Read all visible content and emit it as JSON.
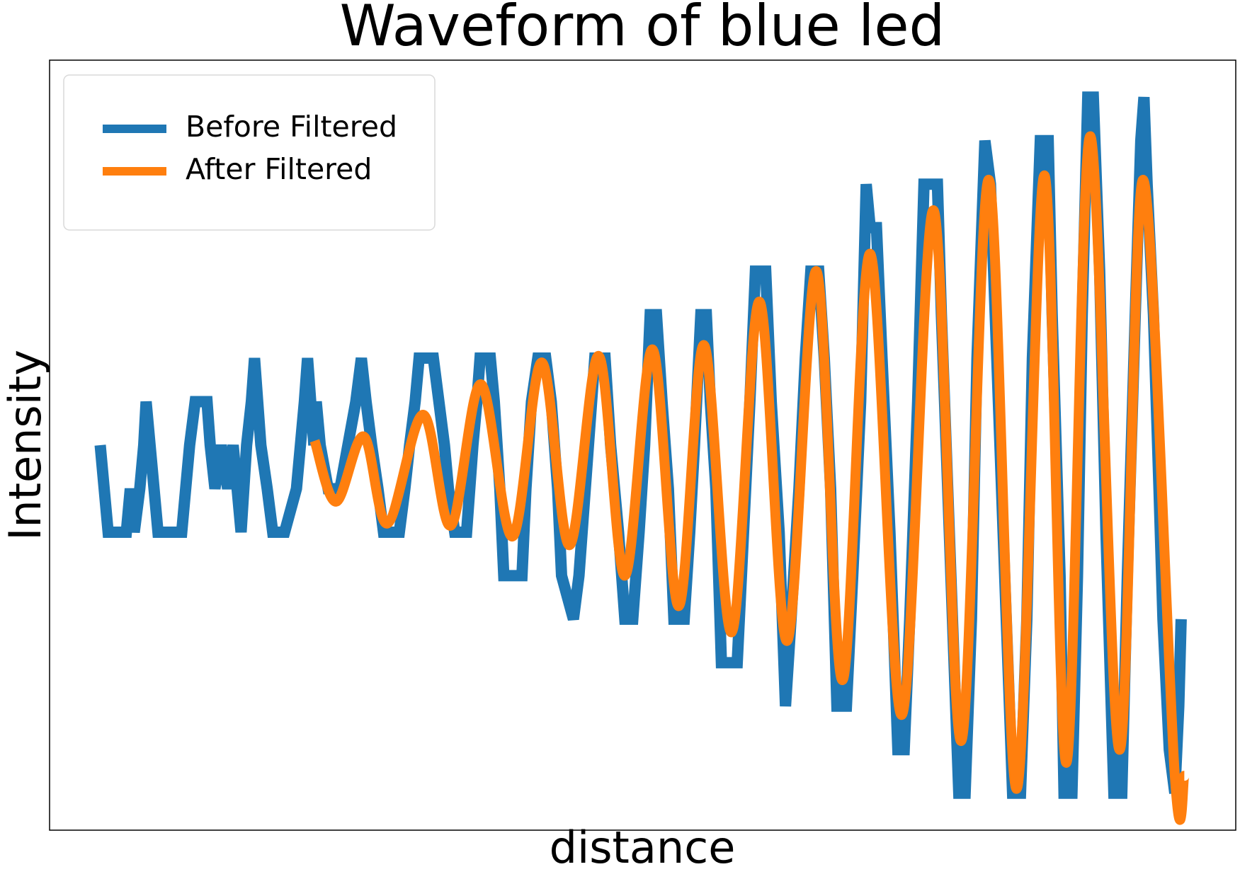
{
  "chart_data": {
    "type": "line",
    "title": "Waveform of blue led",
    "x_label": "distance",
    "y_label": "Intensity",
    "xlim": [
      63,
      1562
    ],
    "ylim": [
      -8.85,
      8.85
    ],
    "legend": "upper left",
    "series": [
      {
        "name": "Before Filtered",
        "color": "#1f77b4",
        "smooth": false,
        "x": [
          127,
          132,
          137,
          160,
          165,
          170,
          177,
          182,
          185,
          190,
          195,
          200,
          230,
          235,
          240,
          247,
          262,
          266,
          272,
          280,
          288,
          295,
          300,
          305,
          312,
          318,
          322,
          326,
          330,
          338,
          345,
          360,
          375,
          380,
          385,
          389,
          393,
          397,
          400,
          405,
          415,
          430,
          440,
          450,
          457,
          463,
          470,
          478,
          485,
          505,
          512,
          518,
          525,
          530,
          548,
          555,
          562,
          567,
          575,
          590,
          598,
          603,
          607,
          620,
          625,
          632,
          637,
          660,
          665,
          672,
          680,
          690,
          697,
          705,
          710,
          725,
          732,
          740,
          748,
          752,
          765,
          772,
          782,
          790,
          800,
          808,
          815,
          822,
          830,
          837,
          845,
          852,
          865,
          872,
          878,
          886,
          893,
          898,
          905,
          912,
          932,
          940,
          948,
          955,
          968,
          975,
          985,
          993,
          1000,
          1010,
          1018,
          1025,
          1035,
          1042,
          1050,
          1058,
          1070,
          1078,
          1088,
          1095,
          1100,
          1108,
          1115,
          1125,
          1135,
          1143,
          1150,
          1160,
          1168,
          1185,
          1190,
          1200,
          1212,
          1220,
          1228,
          1235,
          1245,
          1252,
          1258,
          1268,
          1280,
          1290,
          1298,
          1305,
          1315,
          1325,
          1330,
          1340,
          1345,
          1355,
          1362,
          1368,
          1375,
          1382,
          1390,
          1398,
          1408,
          1418,
          1425,
          1435,
          1442,
          1446,
          1450,
          1458,
          1465,
          1470,
          1478,
          1485,
          1490,
          1493
        ],
        "values": [
          0,
          -1,
          -2,
          -2,
          -1,
          -2,
          -1,
          0,
          1,
          0,
          -1,
          -2,
          -2,
          -1,
          0,
          1,
          1,
          0,
          -1,
          0,
          -1,
          0,
          -1,
          -2,
          0,
          1,
          2,
          1,
          0,
          -1,
          -2,
          -2,
          -1,
          0,
          1,
          2,
          1,
          0,
          1,
          0,
          -1,
          -1,
          0,
          1,
          2,
          1,
          0,
          -1,
          -2,
          -2,
          -1,
          0,
          1,
          2,
          2,
          1,
          0,
          -1,
          -2,
          -2,
          0,
          1,
          2,
          2,
          1,
          -1,
          -3,
          -3,
          -1,
          1,
          2,
          2,
          1,
          -1,
          -3,
          -4,
          -3,
          -1,
          1,
          2,
          2,
          0,
          -2,
          -4,
          -4,
          -2,
          0,
          3,
          3,
          1,
          -1,
          -4,
          -4,
          -2,
          0,
          3,
          3,
          1,
          -1,
          -5,
          -5,
          -2,
          1,
          4,
          4,
          1,
          -2,
          -6,
          -4,
          -1,
          2,
          4,
          4,
          2,
          -1,
          -6,
          -6,
          -3,
          1,
          6,
          5,
          5,
          2,
          -2,
          -7,
          -7,
          -4,
          1,
          6,
          6,
          3,
          -2,
          -8,
          -8,
          -4,
          2,
          7,
          6,
          3,
          -2,
          -8,
          -8,
          -4,
          2,
          7,
          7,
          3,
          -3,
          -8,
          -8,
          -3,
          3,
          8,
          8,
          4,
          -2,
          -8,
          -8,
          -3,
          3,
          7,
          8,
          6,
          3,
          -1,
          -4,
          -7,
          -8,
          -6,
          -4
        ]
      },
      {
        "name": "After Filtered",
        "color": "#ff7f0e",
        "smooth": true,
        "x": [
          398,
          425,
          460,
          490,
          535,
          570,
          608,
          648,
          685,
          720,
          757,
          790,
          825,
          858,
          890,
          925,
          960,
          995,
          1032,
          1065,
          1100,
          1140,
          1180,
          1215,
          1250,
          1285,
          1320,
          1348,
          1378,
          1415,
          1445,
          1485,
          1497
        ],
        "values": [
          0.1,
          -1.3,
          0.2,
          -1.8,
          0.7,
          -1.85,
          1.4,
          -2.1,
          1.9,
          -2.3,
          2.05,
          -3.0,
          2.2,
          -3.7,
          2.3,
          -4.3,
          3.3,
          -4.5,
          4.0,
          -5.4,
          4.4,
          -6.2,
          5.4,
          -6.8,
          6.1,
          -7.9,
          6.2,
          -7.3,
          7.1,
          -7.0,
          6.1,
          -7.6,
          -7.6
        ]
      }
    ]
  }
}
